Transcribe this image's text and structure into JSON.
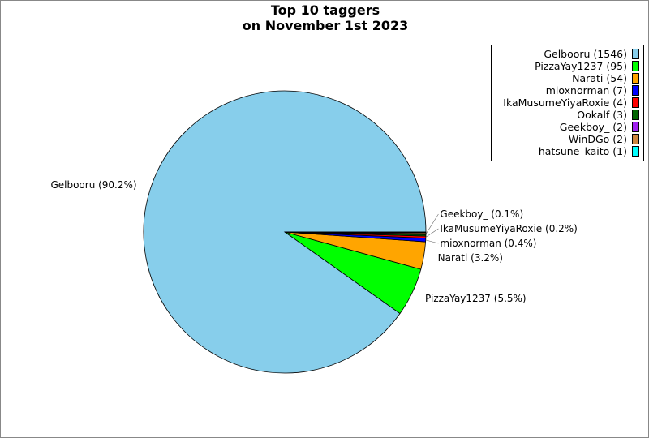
{
  "chart_data": {
    "type": "pie",
    "title": "Top 10 taggers\non November 1st 2023",
    "title_lines": [
      "Top 10 taggers",
      "on November 1st 2023"
    ],
    "legend_position": "top-right",
    "slices": [
      {
        "name": "Gelbooru",
        "value": 1546,
        "color": "#87ceeb",
        "legend": "Gelbooru (1546)",
        "label": "Gelbooru (90.2%)"
      },
      {
        "name": "PizzaYay1237",
        "value": 95,
        "color": "#00ff00",
        "legend": "PizzaYay1237 (95)",
        "label": "PizzaYay1237 (5.5%)"
      },
      {
        "name": "Narati",
        "value": 54,
        "color": "#ffa500",
        "legend": "Narati (54)",
        "label": "Narati (3.2%)"
      },
      {
        "name": "mioxnorman",
        "value": 7,
        "color": "#0000ff",
        "legend": "mioxnorman (7)",
        "label": "mioxnorman (0.4%)"
      },
      {
        "name": "IkaMusumeYiyaRoxie",
        "value": 4,
        "color": "#ff0000",
        "legend": "IkaMusumeYiyaRoxie (4)",
        "label": "IkaMusumeYiyaRoxie (0.2%)"
      },
      {
        "name": "Ookalf",
        "value": 3,
        "color": "#006400",
        "legend": "Ookalf (3)",
        "label": ""
      },
      {
        "name": "Geekboy_",
        "value": 2,
        "color": "#a020f0",
        "legend": "Geekboy_ (2)",
        "label": "Geekboy_ (0.1%)"
      },
      {
        "name": "WinDGo",
        "value": 2,
        "color": "#cd853f",
        "legend": "WinDGo (2)",
        "label": ""
      },
      {
        "name": "hatsune_kaito",
        "value": 1,
        "color": "#00ffff",
        "legend": "hatsune_kaito (1)",
        "label": ""
      }
    ]
  }
}
